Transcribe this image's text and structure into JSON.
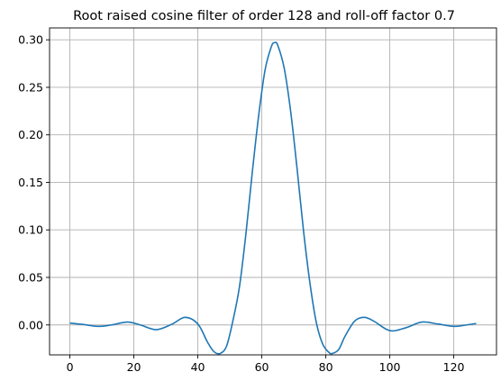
{
  "chart_data": {
    "type": "line",
    "title": "Root raised cosine filter of order 128 and roll-off factor 0.7",
    "xlabel": "",
    "ylabel": "",
    "grid": true,
    "xlim": [
      -6.35,
      133.35
    ],
    "ylim": [
      -0.0315,
      0.3125
    ],
    "x_ticks": [
      0,
      20,
      40,
      60,
      80,
      100,
      120
    ],
    "x_tick_labels": [
      "0",
      "20",
      "40",
      "60",
      "80",
      "100",
      "120"
    ],
    "y_ticks": [
      0.0,
      0.05,
      0.1,
      0.15,
      0.2,
      0.25,
      0.3
    ],
    "y_tick_labels": [
      "0.00",
      "0.05",
      "0.10",
      "0.15",
      "0.20",
      "0.25",
      "0.30"
    ],
    "series": [
      {
        "color": "#1f77b4",
        "x": [
          0,
          4,
          9,
          13,
          18,
          22,
          27,
          32,
          36,
          40,
          43,
          45,
          47,
          49,
          51,
          53,
          55,
          57,
          59,
          61,
          63,
          64,
          65,
          67,
          69,
          71,
          73,
          75,
          77,
          79,
          81,
          82,
          84,
          86,
          89,
          92,
          95,
          100,
          105,
          110,
          115,
          120,
          124,
          127
        ],
        "y": [
          0.002,
          0.0005,
          -0.0015,
          0.0,
          0.003,
          0.0,
          -0.005,
          0.001,
          0.008,
          0.001,
          -0.018,
          -0.028,
          -0.03,
          -0.022,
          0.005,
          0.04,
          0.095,
          0.16,
          0.22,
          0.268,
          0.293,
          0.297,
          0.294,
          0.27,
          0.225,
          0.165,
          0.1,
          0.045,
          0.003,
          -0.02,
          -0.029,
          -0.03,
          -0.026,
          -0.012,
          0.004,
          0.008,
          0.004,
          -0.006,
          -0.003,
          0.003,
          0.001,
          -0.0015,
          0.0,
          0.0015
        ]
      }
    ]
  }
}
